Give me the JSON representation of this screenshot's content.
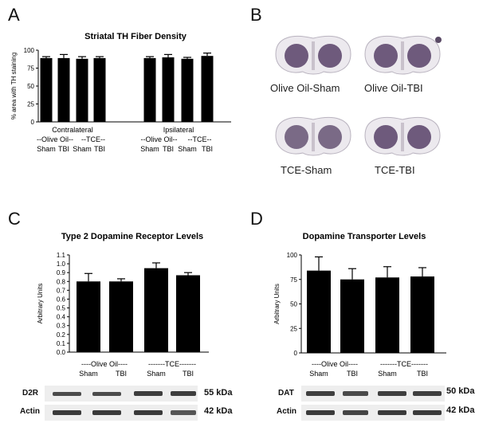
{
  "panels": {
    "A": {
      "letter": "A",
      "chart_data": {
        "type": "bar",
        "title": "Striatal TH Fiber Density",
        "ylabel": "% area with TH staining",
        "ylim": [
          0,
          100
        ],
        "yticks": [
          0,
          25,
          50,
          75,
          100
        ],
        "groups": [
          {
            "name": "Contralateral",
            "sub": [
              "--Olive Oil--",
              "--TCE--"
            ],
            "ticks": [
              "Sham",
              "TBI",
              "Sham",
              "TBI"
            ]
          },
          {
            "name": "Ipsilateral",
            "sub": [
              "--Olive Oil--",
              "--TCE--"
            ],
            "ticks": [
              "Sham",
              "TBI",
              "Sham",
              "TBI"
            ]
          }
        ],
        "values": [
          89,
          89,
          88,
          89,
          89,
          90,
          88,
          92
        ],
        "errors": [
          2,
          5,
          3,
          2,
          2,
          4,
          2,
          4
        ]
      }
    },
    "B": {
      "letter": "B",
      "labels": [
        "Olive Oil-Sham",
        "Olive Oil-TBI",
        "TCE-Sham",
        "TCE-TBI"
      ]
    },
    "C": {
      "letter": "C",
      "chart_data": {
        "type": "bar",
        "title": "Type 2 Dopamine Receptor Levels",
        "ylabel": "Arbitrary Units",
        "ylim": [
          0,
          1.1
        ],
        "yticks": [
          "0.0",
          "0.1",
          "0.2",
          "0.3",
          "0.4",
          "0.5",
          "0.6",
          "0.7",
          "0.8",
          "0.9",
          "1.0",
          "1.1"
        ],
        "group_labels": [
          "----Olive Oil----",
          "-------TCE-------"
        ],
        "categories": [
          "Sham",
          "TBI",
          "Sham",
          "TBI"
        ],
        "values": [
          0.8,
          0.8,
          0.95,
          0.87
        ],
        "errors": [
          0.09,
          0.03,
          0.06,
          0.03
        ]
      },
      "blot": {
        "rows": [
          "D2R",
          "Actin"
        ],
        "kda": [
          "55 kDa",
          "42 kDa"
        ]
      }
    },
    "D": {
      "letter": "D",
      "chart_data": {
        "type": "bar",
        "title": "Dopamine Transporter Levels",
        "ylabel": "Arbitrary Units",
        "ylim": [
          0,
          100
        ],
        "yticks": [
          "0",
          "25",
          "50",
          "75",
          "100"
        ],
        "group_labels": [
          "----Olive Oil----",
          "-------TCE-------"
        ],
        "categories": [
          "Sham",
          "TBI",
          "Sham",
          "TBI"
        ],
        "values": [
          84,
          75,
          77,
          78
        ],
        "errors": [
          14,
          11,
          11,
          9
        ]
      },
      "blot": {
        "rows": [
          "DAT",
          "Actin"
        ],
        "kda": [
          "50 kDa",
          "42 kDa"
        ]
      }
    }
  }
}
